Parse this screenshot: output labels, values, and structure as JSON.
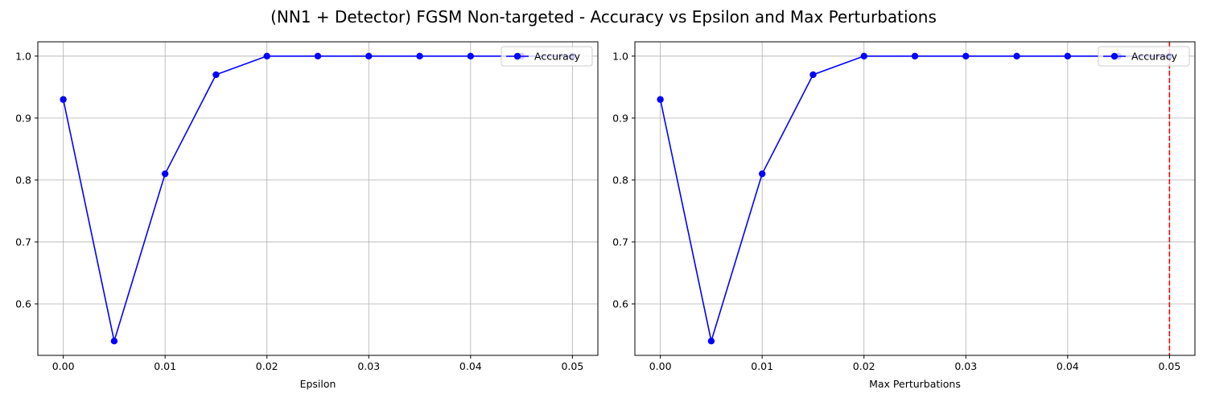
{
  "figure": {
    "title": "(NN1 + Detector) FGSM Non-targeted - Accuracy vs Epsilon and Max Perturbations"
  },
  "colors": {
    "series": "#0000ff",
    "grid": "#b0b0b0",
    "threshold": "#ff0000",
    "axes": "#000000"
  },
  "chart_data": [
    {
      "type": "line",
      "title": "",
      "xlabel": "Epsilon",
      "ylabel": "",
      "xlim": [
        -0.0025,
        0.0525
      ],
      "ylim": [
        0.5169,
        1.0231
      ],
      "xticks": [
        0.0,
        0.01,
        0.02,
        0.03,
        0.04,
        0.05
      ],
      "xtick_labels": [
        "0.00",
        "0.01",
        "0.02",
        "0.03",
        "0.04",
        "0.05"
      ],
      "yticks": [
        0.6,
        0.7,
        0.8,
        0.9,
        1.0
      ],
      "ytick_labels": [
        "0.6",
        "0.7",
        "0.8",
        "0.9",
        "1.0"
      ],
      "grid": true,
      "legend": "top-right",
      "series": [
        {
          "name": "Accuracy",
          "marker": "circle",
          "color": "#0000ff",
          "x": [
            0.0,
            0.005,
            0.01,
            0.015,
            0.02,
            0.025,
            0.03,
            0.035,
            0.04,
            0.045,
            0.05
          ],
          "y": [
            0.93,
            0.54,
            0.81,
            0.97,
            1.0,
            1.0,
            1.0,
            1.0,
            1.0,
            1.0,
            1.0
          ]
        }
      ],
      "vlines": []
    },
    {
      "type": "line",
      "title": "",
      "xlabel": "Max Perturbations",
      "ylabel": "",
      "xlim": [
        -0.0025,
        0.0525
      ],
      "ylim": [
        0.5169,
        1.0231
      ],
      "xticks": [
        0.0,
        0.01,
        0.02,
        0.03,
        0.04,
        0.05
      ],
      "xtick_labels": [
        "0.00",
        "0.01",
        "0.02",
        "0.03",
        "0.04",
        "0.05"
      ],
      "yticks": [
        0.6,
        0.7,
        0.8,
        0.9,
        1.0
      ],
      "ytick_labels": [
        "0.6",
        "0.7",
        "0.8",
        "0.9",
        "1.0"
      ],
      "grid": true,
      "legend": "top-right",
      "series": [
        {
          "name": "Accuracy",
          "marker": "circle",
          "color": "#0000ff",
          "x": [
            0.0,
            0.005,
            0.01,
            0.015,
            0.02,
            0.025,
            0.03,
            0.035,
            0.04,
            0.045,
            0.05
          ],
          "y": [
            0.93,
            0.54,
            0.81,
            0.97,
            1.0,
            1.0,
            1.0,
            1.0,
            1.0,
            1.0,
            1.0
          ]
        }
      ],
      "vlines": [
        {
          "x": 0.05,
          "color": "#ff0000",
          "style": "dashed"
        }
      ]
    }
  ]
}
